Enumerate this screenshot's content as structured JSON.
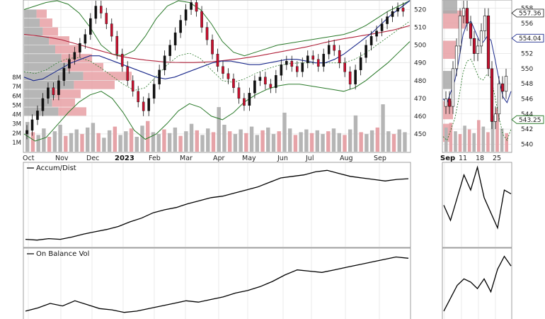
{
  "chart_data": [
    {
      "type": "candlestick",
      "panel": "main-price",
      "x_months": [
        "Oct",
        "Nov",
        "Dec",
        "2023",
        "Feb",
        "Mar",
        "Apr",
        "May",
        "Jun",
        "Jul",
        "Aug",
        "Sep"
      ],
      "y_ticks": [
        450,
        460,
        470,
        480,
        490,
        500,
        510,
        520
      ],
      "ylim": [
        440,
        525
      ],
      "volume_ticks": [
        "1M",
        "2M",
        "3M",
        "4M",
        "5M",
        "6M",
        "7M",
        "8M"
      ],
      "volume_ylim": [
        0,
        9
      ],
      "price_closes": [
        452,
        458,
        463,
        470,
        476,
        472,
        480,
        487,
        492,
        496,
        501,
        506,
        515,
        522,
        518,
        512,
        505,
        495,
        488,
        480,
        474,
        468,
        463,
        470,
        478,
        486,
        494,
        500,
        507,
        514,
        520,
        524,
        519,
        510,
        503,
        495,
        488,
        484,
        481,
        476,
        470,
        466,
        473,
        480,
        482,
        478,
        476,
        483,
        489,
        491,
        488,
        485,
        490,
        494,
        492,
        488,
        495,
        500,
        497,
        490,
        485,
        478,
        486,
        493,
        500,
        505,
        508,
        512,
        516,
        519,
        521,
        519
      ],
      "ma_long": [
        506,
        505.5,
        504.8,
        504,
        503,
        501.5,
        500,
        498.5,
        497,
        495.5,
        494,
        493,
        492.2,
        491.5,
        491,
        490.5,
        490.3,
        490.2,
        490.2,
        490.4,
        490.7,
        491.2,
        491.8,
        492.4,
        493.2,
        494,
        495,
        496,
        497,
        498,
        499,
        500.2,
        501.5,
        502.6,
        503.6,
        504.5,
        505.4,
        506.3,
        507.2,
        508.2,
        509.5,
        511
      ],
      "ma_short": [
        482,
        480,
        481,
        484,
        487,
        490,
        492,
        494,
        494,
        492,
        490,
        488,
        486,
        484,
        482,
        481,
        482,
        484,
        486,
        488,
        490,
        491,
        491,
        490,
        489,
        489,
        490,
        491,
        492,
        492,
        491,
        490,
        490,
        492,
        495,
        499,
        503,
        507,
        512,
        517,
        521,
        525
      ],
      "bb_upper": [
        520,
        522,
        524,
        525,
        523,
        518,
        510,
        500,
        495,
        494,
        497,
        505,
        515,
        522,
        525,
        524,
        520,
        512,
        502,
        496,
        494,
        496,
        498,
        500,
        501,
        502,
        503,
        504,
        505,
        506,
        508,
        511,
        515,
        519,
        522,
        525
      ],
      "bb_lower": [
        450,
        446,
        448,
        455,
        462,
        468,
        472,
        474,
        470,
        462,
        452,
        447,
        450,
        456,
        463,
        467,
        465,
        460,
        458,
        462,
        468,
        472,
        475,
        477,
        478,
        478,
        477,
        476,
        475,
        474,
        476,
        480,
        485,
        490,
        496,
        502
      ],
      "volume_by_price": [
        {
          "price": 462.5,
          "weight": 0.55
        },
        {
          "price": 467.5,
          "weight": 0.45
        },
        {
          "price": 472.5,
          "weight": 0.5
        },
        {
          "price": 477.5,
          "weight": 0.8
        },
        {
          "price": 482.5,
          "weight": 0.95
        },
        {
          "price": 487.5,
          "weight": 0.7
        },
        {
          "price": 492.5,
          "weight": 0.6
        },
        {
          "price": 497.5,
          "weight": 0.5
        },
        {
          "price": 502.5,
          "weight": 0.4
        },
        {
          "price": 507.5,
          "weight": 0.3
        },
        {
          "price": 512.5,
          "weight": 0.25
        },
        {
          "price": 517.5,
          "weight": 0.2
        }
      ],
      "volume_bars": [
        3.2,
        2.1,
        1.8,
        2.5,
        1.6,
        2.2,
        2.9,
        1.7,
        2.0,
        2.4,
        1.9,
        2.6,
        3.1,
        2.0,
        1.5,
        2.3,
        2.7,
        1.8,
        2.2,
        2.5,
        1.6,
        2.8,
        3.3,
        2.1,
        1.9,
        2.4,
        2.0,
        2.6,
        1.7,
        2.2,
        3.0,
        2.3,
        1.8,
        2.5,
        2.1,
        4.8,
        2.9,
        2.2,
        1.9,
        2.4,
        2.0,
        2.7,
        1.8,
        2.3,
        2.6,
        1.9,
        2.2,
        4.2,
        2.5,
        1.8,
        2.1,
        2.4,
        2.0,
        2.3,
        1.9,
        2.2,
        2.5,
        2.0,
        1.8,
        2.4,
        3.9,
        2.1,
        1.9,
        2.3,
        2.6,
        5.1,
        2.2,
        1.9,
        2.4,
        2.1
      ]
    },
    {
      "type": "candlestick",
      "panel": "zoom-price",
      "x_ticks": [
        "Sep",
        "11",
        "18",
        "25"
      ],
      "y_ticks": [
        540,
        542,
        544,
        546,
        548,
        550,
        552,
        554,
        556,
        558
      ],
      "ylim": [
        539,
        559
      ],
      "last_price_label": "557.36",
      "ma_label": "554.04",
      "bb_label": "543.25",
      "closes": [
        546,
        545,
        550,
        553,
        557,
        558,
        556,
        554,
        552,
        553,
        555,
        557,
        550,
        543,
        544,
        548,
        547,
        549
      ]
    },
    {
      "type": "line",
      "panel": "accum-dist",
      "title": "Accum/Dist",
      "values": [
        0.05,
        0.04,
        0.06,
        0.05,
        0.08,
        0.12,
        0.15,
        0.18,
        0.22,
        0.28,
        0.33,
        0.4,
        0.44,
        0.47,
        0.52,
        0.56,
        0.6,
        0.62,
        0.66,
        0.7,
        0.74,
        0.8,
        0.86,
        0.88,
        0.9,
        0.94,
        0.96,
        0.92,
        0.88,
        0.86,
        0.84,
        0.82,
        0.84,
        0.85
      ],
      "zoom_values": [
        0.5,
        0.3,
        0.6,
        0.9,
        0.7,
        1.0,
        0.6,
        0.4,
        0.2,
        0.7,
        0.65
      ]
    },
    {
      "type": "line",
      "panel": "on-balance-vol",
      "title": "On Balance Vol",
      "values": [
        0.1,
        0.15,
        0.22,
        0.18,
        0.26,
        0.2,
        0.14,
        0.12,
        0.08,
        0.1,
        0.14,
        0.18,
        0.22,
        0.26,
        0.24,
        0.28,
        0.32,
        0.38,
        0.42,
        0.48,
        0.56,
        0.66,
        0.74,
        0.72,
        0.7,
        0.74,
        0.78,
        0.82,
        0.86,
        0.9,
        0.94,
        0.92
      ],
      "zoom_values": [
        0.1,
        0.3,
        0.5,
        0.6,
        0.55,
        0.45,
        0.6,
        0.4,
        0.75,
        0.95,
        0.8
      ]
    }
  ]
}
